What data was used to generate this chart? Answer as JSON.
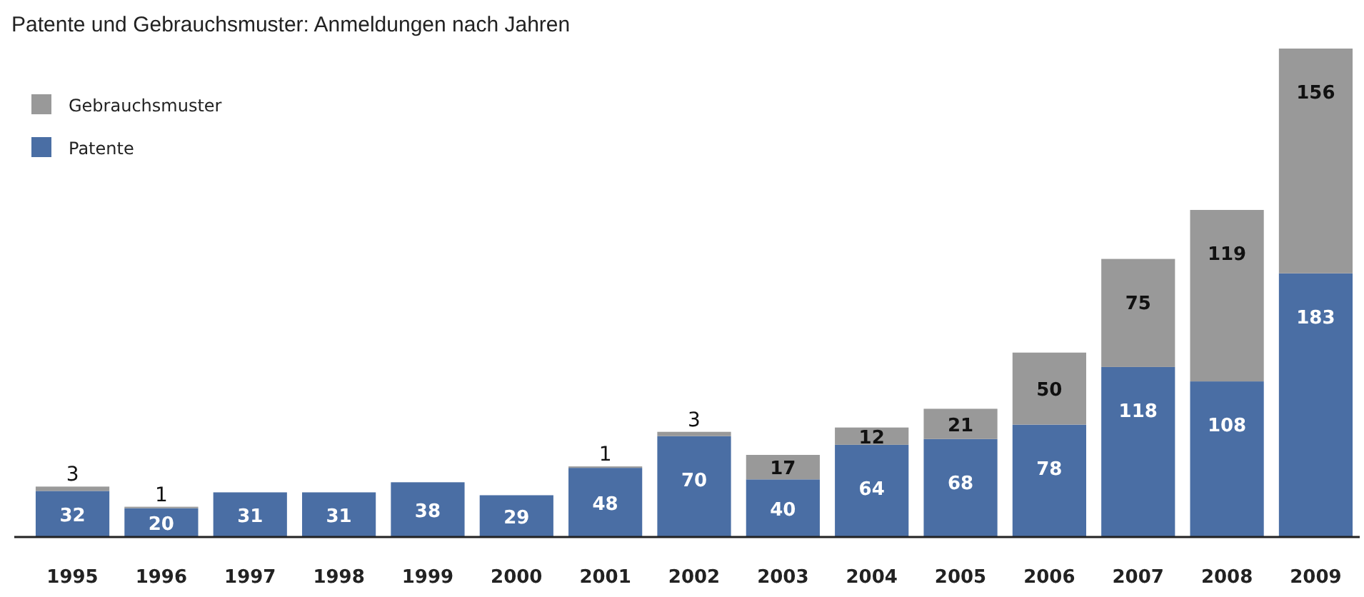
{
  "chart_data": {
    "type": "bar",
    "title": "Patente und Gebrauchsmuster: Anmeldungen nach Jahren",
    "categories": [
      "1995",
      "1996",
      "1997",
      "1998",
      "1999",
      "2000",
      "2001",
      "2002",
      "2003",
      "2004",
      "2005",
      "2006",
      "2007",
      "2008",
      "2009"
    ],
    "stacked": true,
    "data_labels": true,
    "legend": "top left",
    "series": [
      {
        "name": "Patente",
        "color": "#4a6ea4",
        "values": [
          32,
          20,
          31,
          31,
          38,
          29,
          48,
          70,
          40,
          64,
          68,
          78,
          118,
          108,
          183
        ]
      },
      {
        "name": "Gebrauchsmuster",
        "color": "#999999",
        "values": [
          3,
          1,
          null,
          null,
          null,
          null,
          1,
          3,
          17,
          12,
          21,
          50,
          75,
          119,
          156
        ]
      }
    ]
  }
}
